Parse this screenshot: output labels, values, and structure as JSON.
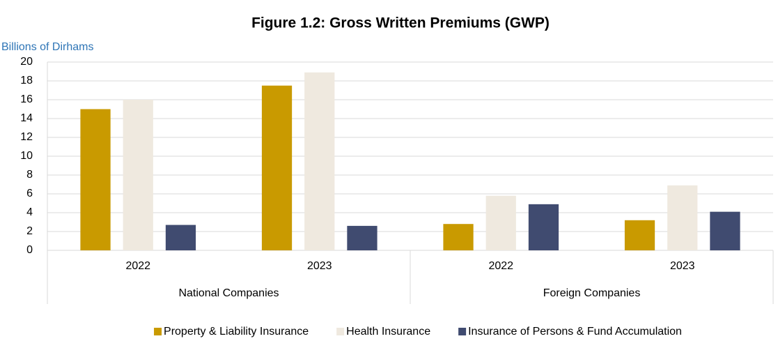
{
  "chart_data": {
    "type": "bar",
    "title": "Figure 1.2: Gross Written Premiums (GWP)",
    "y_label": "Billions of Dirhams",
    "categories": [
      "2022",
      "2023",
      "2022",
      "2023"
    ],
    "groups": [
      "National Companies",
      "Foreign Companies"
    ],
    "series": [
      {
        "name": "Property & Liability Insurance",
        "color": "#c99a00",
        "values": [
          15.0,
          17.5,
          2.8,
          3.2
        ]
      },
      {
        "name": "Health Insurance",
        "color": "#efe9df",
        "values": [
          16.0,
          18.9,
          5.8,
          6.9
        ]
      },
      {
        "name": "Insurance of Persons & Fund Accumulation",
        "color": "#404b70",
        "values": [
          2.7,
          2.6,
          4.9,
          4.1
        ]
      }
    ],
    "ylim": [
      0,
      20
    ],
    "yticks": [
      0,
      2,
      4,
      6,
      8,
      10,
      12,
      14,
      16,
      18,
      20
    ],
    "grid": true
  }
}
